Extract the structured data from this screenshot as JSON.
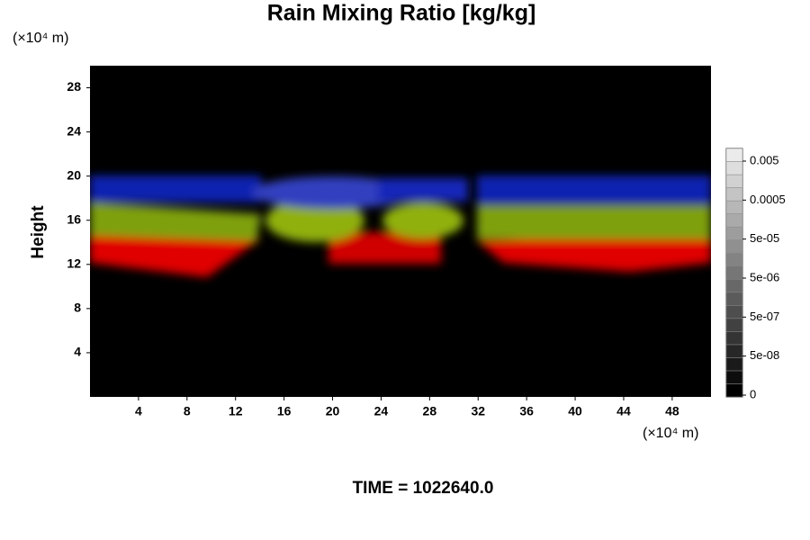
{
  "chart_data": {
    "type": "contour",
    "title": "Rain Mixing Ratio [kg/kg]",
    "ylabel": "Height",
    "x_unit": "(×10⁴ m)",
    "y_unit": "(×10⁴ m)",
    "footer": "TIME = 1022640.0",
    "xlim": [
      0,
      51.2
    ],
    "xticks": [
      4,
      8,
      12,
      16,
      20,
      24,
      28,
      32,
      36,
      40,
      44,
      48
    ],
    "ylim": [
      0,
      30
    ],
    "yticks": [
      4,
      8,
      12,
      16,
      20,
      24,
      28
    ],
    "colorbar_ticks": [
      0,
      {
        "value": 5e-08,
        "label": "5e-08"
      },
      {
        "value": 5e-07,
        "label": "5e-07"
      },
      {
        "value": 5e-06,
        "label": "5e-06"
      },
      {
        "value": 5e-05,
        "label": "5e-05"
      },
      {
        "value": 0.0005,
        "label": "0.0005"
      },
      {
        "value": 0.005,
        "label": "0.005"
      }
    ]
  }
}
